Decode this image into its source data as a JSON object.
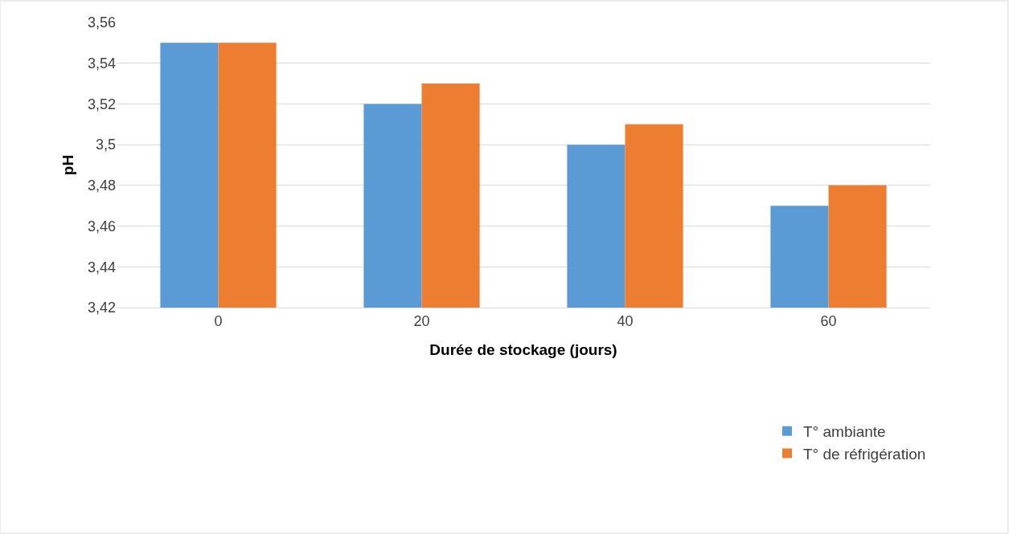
{
  "chart_data": {
    "type": "bar",
    "xlabel": "Durée de stockage (jours)",
    "ylabel": "pH",
    "categories": [
      "0",
      "20",
      "40",
      "60"
    ],
    "series": [
      {
        "name": "T° ambiante",
        "color": "#5b9bd5",
        "values": [
          3.55,
          3.52,
          3.5,
          3.47
        ]
      },
      {
        "name": "T° de réfrigération",
        "color": "#ed7d31",
        "values": [
          3.55,
          3.53,
          3.51,
          3.48
        ]
      }
    ],
    "ylim": [
      3.42,
      3.56
    ],
    "yticks": [
      {
        "value": 3.42,
        "label": "3,42"
      },
      {
        "value": 3.44,
        "label": "3,44"
      },
      {
        "value": 3.46,
        "label": "3,46"
      },
      {
        "value": 3.48,
        "label": "3,48"
      },
      {
        "value": 3.5,
        "label": "3,5"
      },
      {
        "value": 3.52,
        "label": "3,52"
      },
      {
        "value": 3.54,
        "label": "3,54"
      },
      {
        "value": 3.56,
        "label": "3,56"
      }
    ],
    "grid": "y",
    "legend": "bottom right"
  }
}
